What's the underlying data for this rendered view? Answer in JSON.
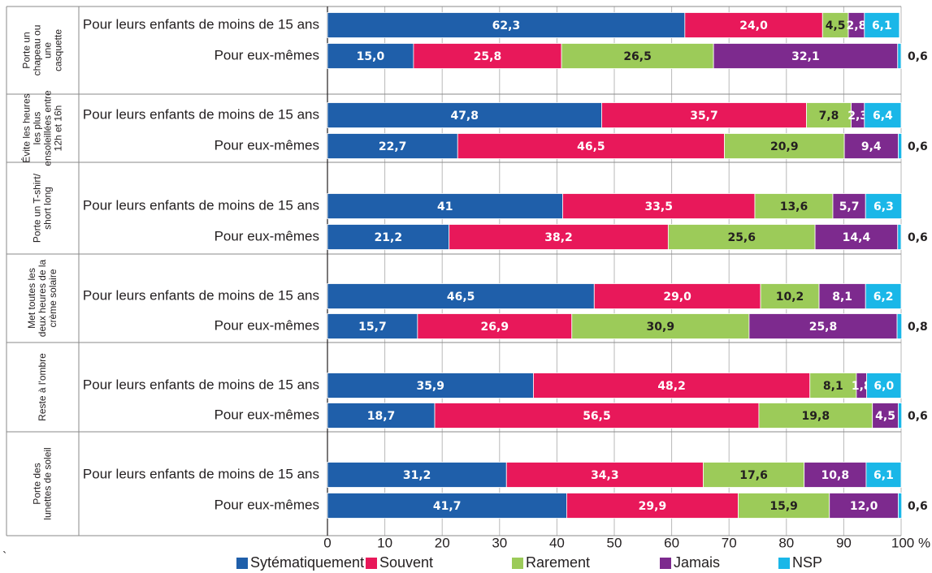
{
  "chart_data": {
    "type": "bar",
    "orientation": "horizontal",
    "stacked": true,
    "xlim": [
      0,
      100
    ],
    "x_ticks": [
      "0",
      "10",
      "20",
      "30",
      "40",
      "50",
      "60",
      "70",
      "80",
      "90",
      "100 %"
    ],
    "grid": true,
    "legend_position": "bottom",
    "series": [
      {
        "name": "Sytématiquement",
        "color": "#1f5faa"
      },
      {
        "name": "Souvent",
        "color": "#e8185a"
      },
      {
        "name": "Rarement",
        "color": "#9ccb59"
      },
      {
        "name": "Jamais",
        "color": "#7d2a8e"
      },
      {
        "name": "NSP",
        "color": "#1ab7e8"
      }
    ],
    "groups": [
      {
        "label_lines": [
          "Porte un",
          "chapeau ou",
          "une",
          "casquette"
        ],
        "rows": [
          {
            "label": "Pour leurs enfants de moins de 15 ans",
            "values": [
              62.3,
              24.0,
              4.5,
              2.8,
              6.1
            ],
            "value_labels": [
              "62,3",
              "24,0",
              "4,5",
              "2,8",
              "6,1"
            ],
            "outside_label": ""
          },
          {
            "label": "Pour eux-mêmes",
            "values": [
              15.0,
              25.8,
              26.5,
              32.1,
              0.6
            ],
            "value_labels": [
              "15,0",
              "25,8",
              "26,5",
              "32,1",
              ""
            ],
            "outside_label": "0,6"
          }
        ]
      },
      {
        "label_lines": [
          "Évite les heures",
          "les plus",
          "ensoleillées entre",
          "12h et 16h"
        ],
        "rows": [
          {
            "label": "Pour leurs enfants de moins de 15 ans",
            "values": [
              47.8,
              35.7,
              7.8,
              2.3,
              6.4
            ],
            "value_labels": [
              "47,8",
              "35,7",
              "7,8",
              "2,3",
              "6,4"
            ],
            "outside_label": ""
          },
          {
            "label": "Pour eux-mêmes",
            "values": [
              22.7,
              46.5,
              20.9,
              9.4,
              0.6
            ],
            "value_labels": [
              "22,7",
              "46,5",
              "20,9",
              "9,4",
              ""
            ],
            "outside_label": "0,6"
          }
        ]
      },
      {
        "label_lines": [
          "Porte un T-shirt/",
          "short long"
        ],
        "rows": [
          {
            "label": "Pour leurs enfants de moins de 15 ans",
            "values": [
              41,
              33.5,
              13.6,
              5.7,
              6.3
            ],
            "value_labels": [
              "41",
              "33,5",
              "13,6",
              "5,7",
              "6,3"
            ],
            "outside_label": ""
          },
          {
            "label": "Pour eux-mêmes",
            "values": [
              21.2,
              38.2,
              25.6,
              14.4,
              0.6
            ],
            "value_labels": [
              "21,2",
              "38,2",
              "25,6",
              "14,4",
              ""
            ],
            "outside_label": "0,6"
          }
        ]
      },
      {
        "label_lines": [
          "Met toutes les",
          "deux heures de la",
          "crème solaire"
        ],
        "rows": [
          {
            "label": "Pour leurs enfants de moins de 15 ans",
            "values": [
              46.5,
              29.0,
              10.2,
              8.1,
              6.2
            ],
            "value_labels": [
              "46,5",
              "29,0",
              "10,2",
              "8,1",
              "6,2"
            ],
            "outside_label": ""
          },
          {
            "label": "Pour eux-mêmes",
            "values": [
              15.7,
              26.9,
              30.9,
              25.8,
              0.8
            ],
            "value_labels": [
              "15,7",
              "26,9",
              "30,9",
              "25,8",
              ""
            ],
            "outside_label": "0,8"
          }
        ]
      },
      {
        "label_lines": [
          "Reste à l'ombre"
        ],
        "rows": [
          {
            "label": "Pour leurs enfants de moins de 15 ans",
            "values": [
              35.9,
              48.2,
              8.1,
              1.8,
              6.0
            ],
            "value_labels": [
              "35,9",
              "48,2",
              "8,1",
              "1,8",
              "6,0"
            ],
            "outside_label": ""
          },
          {
            "label": "Pour eux-mêmes",
            "values": [
              18.7,
              56.5,
              19.8,
              4.5,
              0.6
            ],
            "value_labels": [
              "18,7",
              "56,5",
              "19,8",
              "4,5",
              ""
            ],
            "outside_label": "0,6"
          }
        ]
      },
      {
        "label_lines": [
          "Porte des",
          "lunettes de soleil"
        ],
        "rows": [
          {
            "label": "Pour leurs enfants de moins de 15 ans",
            "values": [
              31.2,
              34.3,
              17.6,
              10.8,
              6.1
            ],
            "value_labels": [
              "31,2",
              "34,3",
              "17,6",
              "10,8",
              "6,1"
            ],
            "outside_label": ""
          },
          {
            "label": "Pour eux-mêmes",
            "values": [
              41.7,
              29.9,
              15.9,
              12.0,
              0.6
            ],
            "value_labels": [
              "41,7",
              "29,9",
              "15,9",
              "12,0",
              ""
            ],
            "outside_label": "0,6"
          }
        ]
      }
    ]
  },
  "stray_mark": "`"
}
